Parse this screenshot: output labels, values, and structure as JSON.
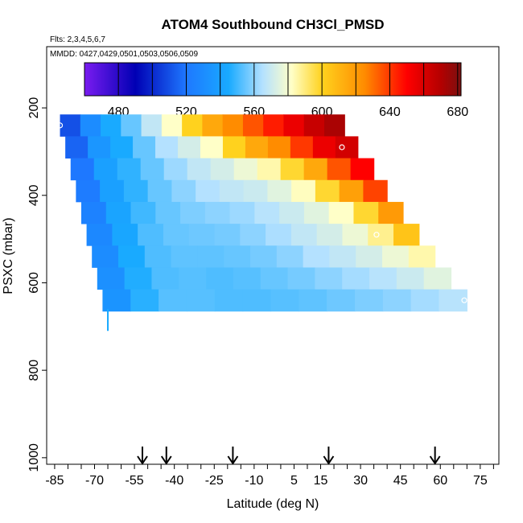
{
  "chart_data": {
    "type": "heatmap",
    "title": "ATOM4 Southbound CH3Cl_PMSD",
    "flights_label": "Flts: 2,3,4,5,6,7",
    "dates_label": "MMDD: 0427,0429,0501,0503,0506,0509",
    "xlabel": "Latitude (deg N)",
    "ylabel": "PSXC (mbar)",
    "xlim": [
      -88,
      82
    ],
    "ylim": [
      1015,
      60
    ],
    "x_ticks": [
      -85,
      -70,
      -55,
      -40,
      -25,
      -10,
      5,
      15,
      30,
      45,
      60,
      75
    ],
    "x_tick_labels": [
      "-85",
      "-70",
      "-55",
      "-40",
      "-25",
      "-10",
      "5",
      "15",
      "30",
      "45",
      "60",
      "75"
    ],
    "y_ticks": [
      200,
      400,
      600,
      800,
      1000
    ],
    "y_tick_labels": [
      "200",
      "400",
      "600",
      "800",
      "1000"
    ],
    "colorbar": {
      "min": 460,
      "max": 682,
      "ticks": [
        480,
        520,
        560,
        600,
        640,
        680
      ],
      "tick_labels": [
        "480",
        "520",
        "560",
        "600",
        "640",
        "680"
      ],
      "colors": [
        "#7a1cf0",
        "#0000b4",
        "#1e78ff",
        "#19aaff",
        "#b4e1ff",
        "#ffffc8",
        "#ffd21e",
        "#ff8c00",
        "#ff0000",
        "#b40000",
        "#7a1010"
      ],
      "stops": [
        460,
        490,
        520,
        545,
        565,
        582,
        600,
        625,
        650,
        670,
        682
      ]
    },
    "rows": [
      {
        "p": 240,
        "lat_start": -83,
        "lat_end": 24,
        "values": [
          510,
          530,
          545,
          555,
          568,
          582,
          600,
          615,
          625,
          635,
          645,
          655,
          665,
          672
        ]
      },
      {
        "p": 290,
        "lat_start": -81,
        "lat_end": 29,
        "values": [
          515,
          535,
          545,
          555,
          565,
          572,
          582,
          600,
          615,
          625,
          640,
          655,
          662
        ]
      },
      {
        "p": 340,
        "lat_start": -79,
        "lat_end": 35,
        "values": [
          520,
          540,
          548,
          555,
          562,
          568,
          572,
          578,
          585,
          598,
          615,
          635,
          650
        ]
      },
      {
        "p": 390,
        "lat_start": -77,
        "lat_end": 40,
        "values": [
          522,
          540,
          548,
          555,
          560,
          565,
          568,
          570,
          575,
          583,
          598,
          618,
          638
        ]
      },
      {
        "p": 440,
        "lat_start": -75,
        "lat_end": 46,
        "values": [
          525,
          542,
          550,
          555,
          558,
          560,
          562,
          566,
          570,
          575,
          582,
          598,
          620
        ]
      },
      {
        "p": 490,
        "lat_start": -73,
        "lat_end": 52,
        "values": [
          528,
          543,
          552,
          555,
          556,
          557,
          560,
          564,
          568,
          572,
          578,
          588,
          605
        ]
      },
      {
        "p": 540,
        "lat_start": -71,
        "lat_end": 58,
        "values": [
          530,
          545,
          552,
          554,
          554,
          555,
          557,
          560,
          565,
          568,
          572,
          578,
          585
        ]
      },
      {
        "p": 590,
        "lat_start": -69,
        "lat_end": 64,
        "values": [
          532,
          546,
          552,
          553,
          552,
          553,
          555,
          557,
          560,
          563,
          566,
          570,
          575
        ]
      },
      {
        "p": 640,
        "lat_start": -67,
        "lat_end": 70,
        "values": [
          534,
          547,
          553,
          553,
          552,
          552,
          553,
          554,
          556,
          558,
          560,
          563,
          566
        ]
      }
    ],
    "markers": [
      {
        "lat": -83,
        "p": 240
      },
      {
        "lat": 23,
        "p": 290
      },
      {
        "lat": 36,
        "p": 490
      },
      {
        "lat": 69,
        "p": 640
      }
    ],
    "drip": {
      "lat": -65,
      "p_top": 660,
      "p_bottom": 710,
      "value": 545
    },
    "arrows": [
      -52,
      -43,
      -18,
      18,
      58
    ]
  }
}
